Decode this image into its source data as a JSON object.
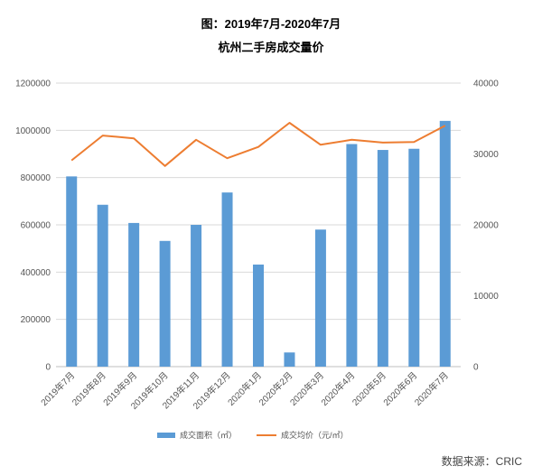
{
  "title": "图：2019年7月-2020年7月",
  "subtitle": "杭州二手房成交量价",
  "source": "数据来源：CRIC",
  "chart_data": {
    "type": "bar",
    "categories": [
      "2019年7月",
      "2019年8月",
      "2019年9月",
      "2019年10月",
      "2019年11月",
      "2019年12月",
      "2020年1月",
      "2020年2月",
      "2020年3月",
      "2020年4月",
      "2020年5月",
      "2020年6月",
      "2020年7月"
    ],
    "series": [
      {
        "name": "成交面积（㎡）",
        "type": "bar",
        "axis": "left",
        "color": "#5b9bd5",
        "values": [
          805000,
          685000,
          608000,
          532000,
          600000,
          737000,
          432000,
          60000,
          580000,
          942000,
          917000,
          922000,
          1040000
        ]
      },
      {
        "name": "成交均价（元/㎡）",
        "type": "line",
        "axis": "right",
        "color": "#ed7d31",
        "values": [
          29100,
          32600,
          32200,
          28300,
          32000,
          29400,
          31000,
          34400,
          31300,
          32000,
          31600,
          31700,
          34000
        ]
      }
    ],
    "y_left": {
      "min": 0,
      "max": 1200000,
      "ticks": [
        0,
        200000,
        400000,
        600000,
        800000,
        1000000,
        1200000
      ]
    },
    "y_right": {
      "min": 0,
      "max": 40000,
      "ticks": [
        0,
        10000,
        20000,
        30000,
        40000
      ]
    },
    "grid": true,
    "legend_position": "bottom"
  }
}
